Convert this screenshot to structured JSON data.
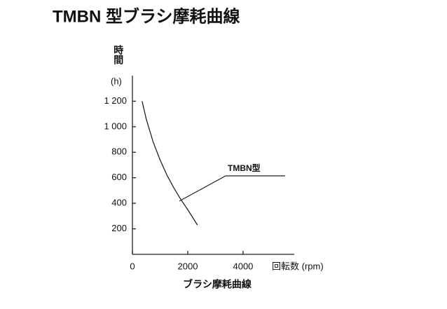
{
  "chart_data": {
    "type": "line",
    "title": "TMBN 型ブラシ摩耗曲線",
    "ylabel": "時間",
    "yunit": "(h)",
    "xlabel": "回転数 (rpm)",
    "caption": "ブラシ摩耗曲線",
    "x": [
      350,
      500,
      750,
      1000,
      1250,
      1500,
      1750,
      2000,
      2350
    ],
    "series": [
      {
        "name": "TMBN型",
        "color": "#222222",
        "values": [
          1200,
          1060,
          880,
          740,
          620,
          520,
          430,
          350,
          230
        ]
      }
    ],
    "xlim": [
      0,
      5850
    ],
    "ylim": [
      0,
      1400
    ],
    "xticks": [
      0,
      2000,
      4000
    ],
    "yticks": [
      200,
      400,
      600,
      800,
      {
        "value": 1000,
        "label": "1 000"
      },
      {
        "value": 1200,
        "label": "1 200"
      }
    ],
    "grid": false
  }
}
